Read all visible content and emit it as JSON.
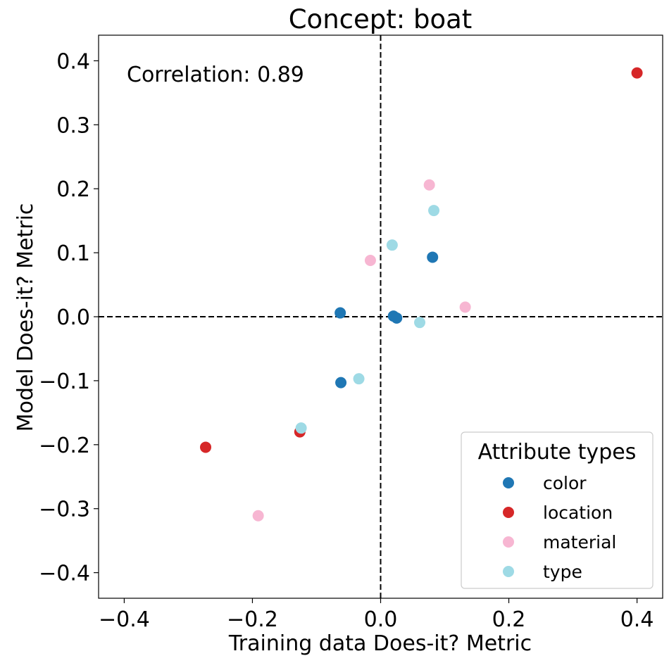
{
  "chart_data": {
    "type": "scatter",
    "title": "Concept: boat",
    "xlabel": "Training data Does-it? Metric",
    "ylabel": "Model Does-it? Metric",
    "annotation": "Correlation: 0.89",
    "xlim": [
      -0.44,
      0.44
    ],
    "ylim": [
      -0.44,
      0.44
    ],
    "xticks": [
      -0.4,
      -0.2,
      0.0,
      0.2,
      0.4
    ],
    "yticks": [
      -0.4,
      -0.3,
      -0.2,
      -0.1,
      0.0,
      0.1,
      0.2,
      0.3,
      0.4
    ],
    "xtick_labels": [
      "−0.4",
      "−0.2",
      "0.0",
      "0.2",
      "0.4"
    ],
    "ytick_labels": [
      "−0.4",
      "−0.3",
      "−0.2",
      "−0.1",
      "0.0",
      "0.1",
      "0.2",
      "0.3",
      "0.4"
    ],
    "reference_lines": {
      "x": 0.0,
      "y": 0.0,
      "style": "dashed"
    },
    "grid": false,
    "legend": {
      "title": "Attribute types",
      "placement": "bottom-right"
    },
    "series": [
      {
        "name": "color",
        "color": "#1f77b4",
        "points": [
          [
            -0.063,
            0.006
          ],
          [
            -0.062,
            -0.103
          ],
          [
            0.02,
            0.001
          ],
          [
            0.025,
            -0.002
          ],
          [
            0.081,
            0.093
          ]
        ]
      },
      {
        "name": "location",
        "color": "#d62728",
        "points": [
          [
            -0.273,
            -0.204
          ],
          [
            -0.126,
            -0.18
          ],
          [
            0.4,
            0.381
          ]
        ]
      },
      {
        "name": "material",
        "color": "#f7b6d2",
        "points": [
          [
            -0.191,
            -0.311
          ],
          [
            -0.016,
            0.088
          ],
          [
            0.076,
            0.206
          ],
          [
            0.132,
            0.015
          ]
        ]
      },
      {
        "name": "type",
        "color": "#9edae5",
        "points": [
          [
            -0.124,
            -0.174
          ],
          [
            -0.034,
            -0.097
          ],
          [
            0.018,
            0.112
          ],
          [
            0.061,
            -0.009
          ],
          [
            0.083,
            0.166
          ]
        ]
      }
    ]
  }
}
